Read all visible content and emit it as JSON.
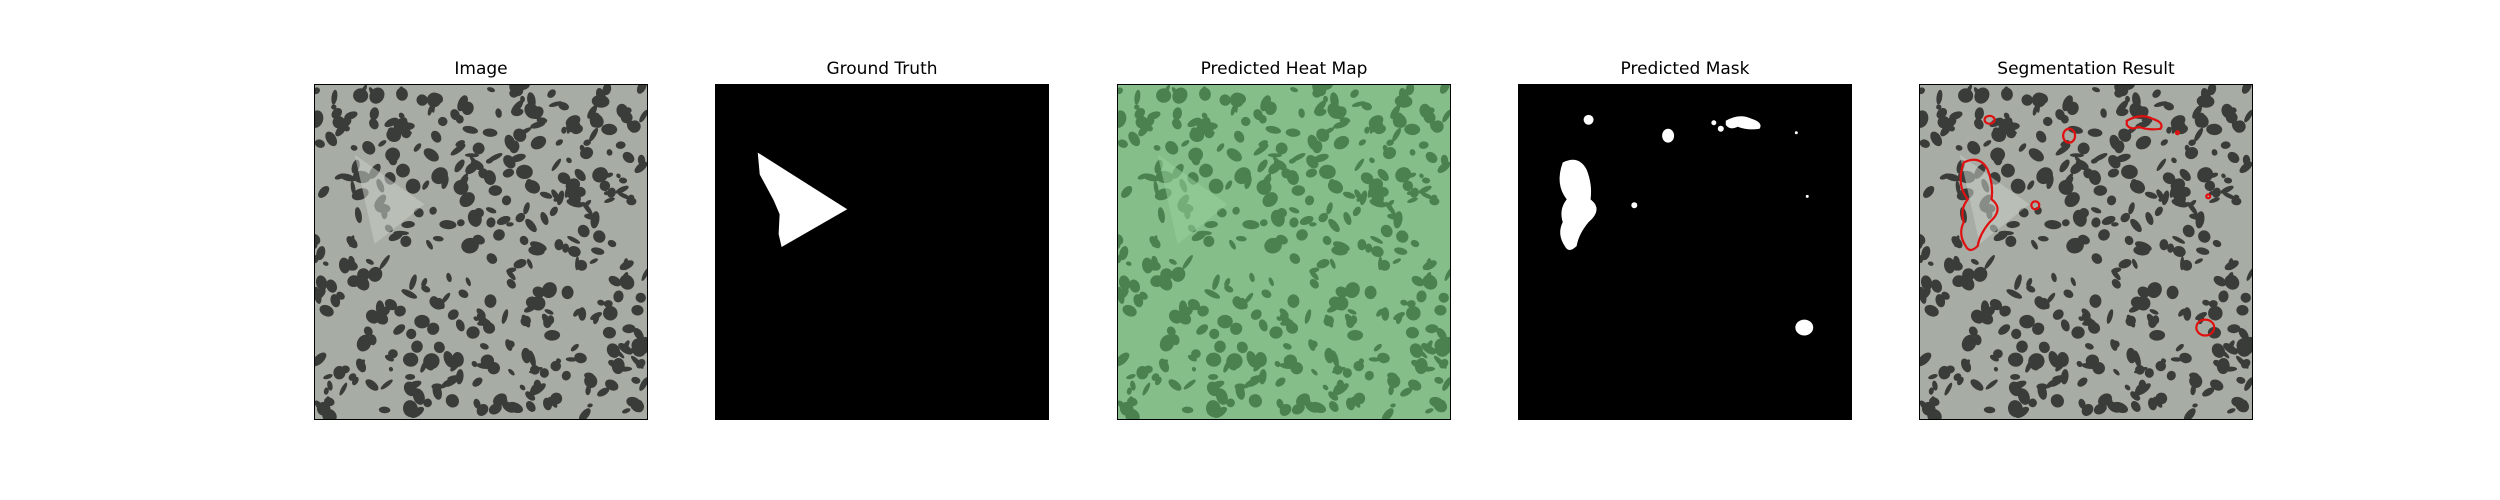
{
  "panels": [
    {
      "title": "Image",
      "kind": "image"
    },
    {
      "title": "Ground Truth",
      "kind": "ground-truth"
    },
    {
      "title": "Predicted Heat Map",
      "kind": "heat-map"
    },
    {
      "title": "Predicted Mask",
      "kind": "mask"
    },
    {
      "title": "Segmentation Result",
      "kind": "segmentation"
    }
  ],
  "colors": {
    "texture_base": "#a7aca4",
    "texture_spots": "#3a3c39",
    "heat_overlay": "#5fd46a",
    "mask_background": "#000000",
    "mask_foreground": "#ffffff",
    "contour": "#e01010",
    "frame": "#000000"
  }
}
